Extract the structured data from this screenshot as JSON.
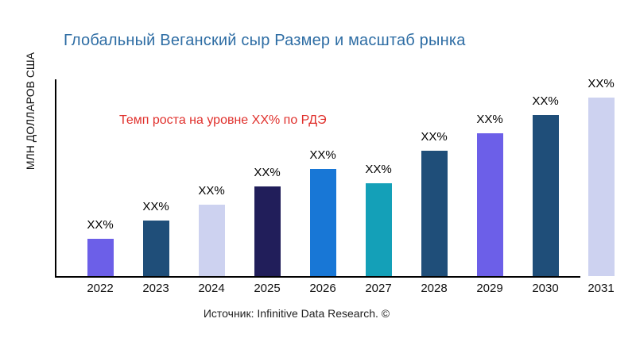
{
  "page": {
    "title": "Глобальный Веганский сыр Размер и масштаб рынка",
    "title_color": "#2E6DA4",
    "annotation": {
      "text": "Темп роста на уровне XX% по РДЭ",
      "color": "#E0302C"
    },
    "source": "Источник: Infinitive Data Research. ©",
    "axis_color": "#000000",
    "background_color": "#FFFFFF"
  },
  "chart_data": {
    "type": "bar",
    "title": "Глобальный Веганский сыр Размер и масштаб рынка",
    "xlabel": "",
    "ylabel": "МЛН ДОЛЛАРОВ США",
    "categories": [
      "2022",
      "2023",
      "2024",
      "2025",
      "2026",
      "2027",
      "2028",
      "2029",
      "2030",
      "2031"
    ],
    "values": [
      21,
      31,
      40,
      50,
      60,
      52,
      70,
      80,
      90,
      100
    ],
    "values_note": "relative bar heights in % of tallest bar; numeric values are masked as XX% in the chart",
    "bar_labels": [
      "XX%",
      "XX%",
      "XX%",
      "XX%",
      "XX%",
      "XX%",
      "XX%",
      "XX%",
      "XX%",
      "XX%"
    ],
    "bar_colors": [
      "#6C5FE8",
      "#1F4E79",
      "#CDD2F0",
      "#211E5A",
      "#1877D6",
      "#14A0B8",
      "#1F4E79",
      "#6C5FE8",
      "#1F4E79",
      "#CDD2F0"
    ],
    "ylim": [
      0,
      110
    ],
    "grid": false,
    "legend": false,
    "annotation": "Темп роста на уровне XX% по РДЭ"
  }
}
